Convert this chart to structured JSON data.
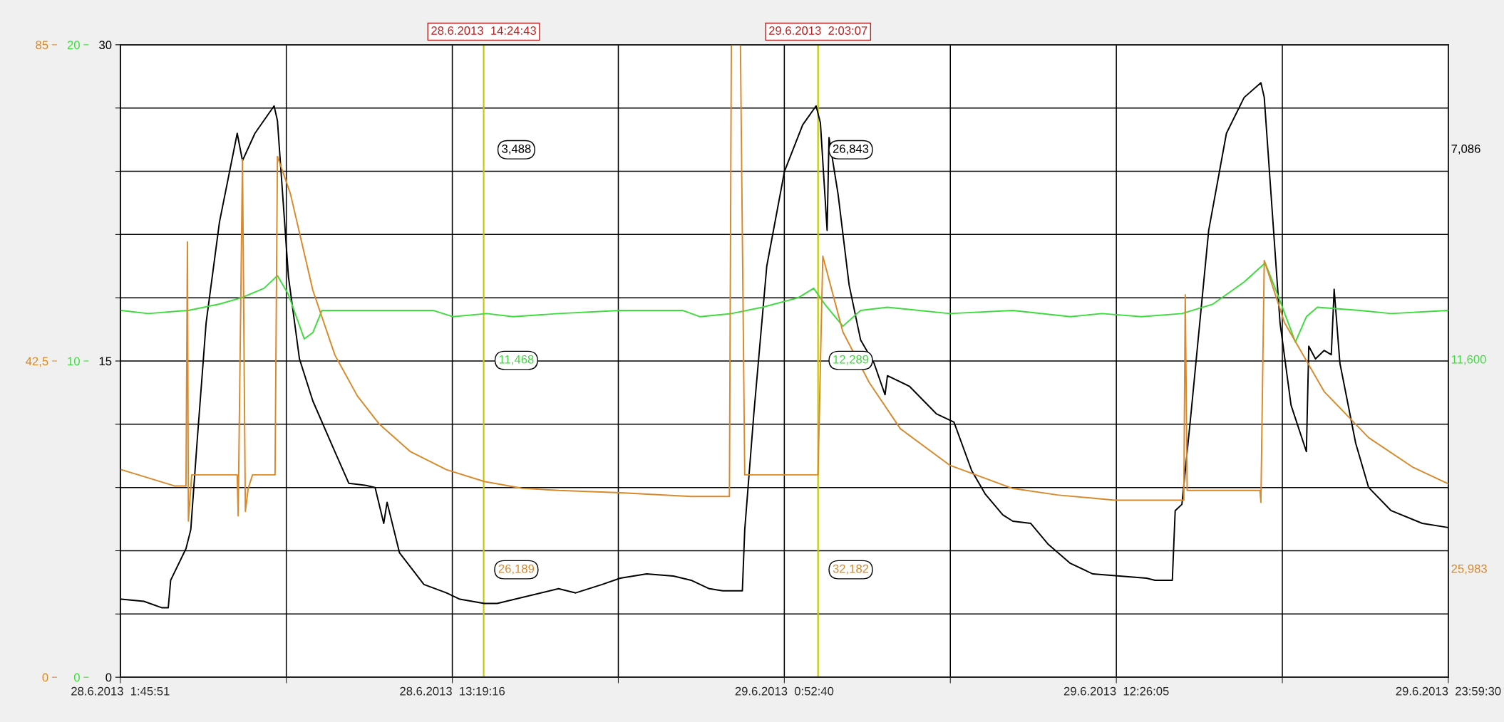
{
  "chart_data": {
    "type": "line",
    "xlim": [
      "2013-06-28T01:45:51",
      "2013-06-29T23:59:30"
    ],
    "xticks": [
      {
        "value": "2013-06-28T01:45:51",
        "label": "28.6.2013  1:45:51"
      },
      {
        "value": "2013-06-28T07:32:33",
        "label": null
      },
      {
        "value": "2013-06-28T13:19:16",
        "label": "28.6.2013  13:19:16"
      },
      {
        "value": "2013-06-28T19:05:58",
        "label": null
      },
      {
        "value": "2013-06-29T00:52:40",
        "label": "29.6.2013  0:52:40"
      },
      {
        "value": "2013-06-29T06:39:22",
        "label": null
      },
      {
        "value": "2013-06-29T12:26:05",
        "label": "29.6.2013  12:26:05"
      },
      {
        "value": "2013-06-29T18:12:47",
        "label": null
      },
      {
        "value": "2013-06-29T23:59:30",
        "label": "29.6.2013  23:59:30"
      }
    ],
    "ylim": [
      0,
      30
    ],
    "yticks": [
      0,
      {
        "value": 3,
        "label": null
      },
      {
        "value": 6,
        "label": null
      },
      {
        "value": 9,
        "label": null
      },
      {
        "value": 12,
        "label": null
      },
      15,
      {
        "value": 18,
        "label": null
      },
      {
        "value": 21,
        "label": null
      },
      {
        "value": 24,
        "label": null
      },
      {
        "value": 27,
        "label": null
      },
      30
    ],
    "y2lim": [
      0,
      20
    ],
    "y2ticks": [
      0,
      10,
      20
    ],
    "y3lim": [
      0,
      85
    ],
    "y3ticks": [
      0,
      {
        "value": 42.5,
        "label": "42,5"
      },
      85
    ],
    "grid": true,
    "series": [
      {
        "color": "#000000",
        "axis": "y",
        "x": [
          "2013-06-28T01:48",
          "2013-06-28T02:35",
          "2013-06-28T03:12",
          "2013-06-28T03:26",
          "2013-06-28T03:31",
          "2013-06-28T04:03",
          "2013-06-28T04:13",
          "2013-06-28T04:26",
          "2013-06-28T04:45",
          "2013-06-28T05:13",
          "2013-06-28T05:50",
          "2013-06-28T06:01",
          "2013-06-28T06:27",
          "2013-06-28T07:07",
          "2013-06-28T07:14",
          "2013-06-28T07:37",
          "2013-06-28T08:00",
          "2013-06-28T08:28",
          "2013-06-28T09:14",
          "2013-06-28T09:43",
          "2013-06-28T10:19",
          "2013-06-28T10:38",
          "2013-06-28T10:56",
          "2013-06-28T11:03",
          "2013-06-28T11:29",
          "2013-06-28T12:20",
          "2013-06-28T13:07",
          "2013-06-28T13:35",
          "2013-06-28T14:26",
          "2013-06-28T14:53",
          "2013-06-28T17:01",
          "2013-06-28T17:37",
          "2013-06-28T18:32",
          "2013-06-28T19:10",
          "2013-06-28T20:05",
          "2013-06-28T21:01",
          "2013-06-28T21:38",
          "2013-06-28T22:16",
          "2013-06-28T22:44",
          "2013-06-28T23:25",
          "2013-06-28T23:30",
          "2013-06-28T23:49",
          "2013-06-29T00:16",
          "2013-06-29T00:53",
          "2013-06-29T01:31",
          "2013-06-29T01:59",
          "2013-06-29T02:08",
          "2013-06-29T02:22",
          "2013-06-29T02:26",
          "2013-06-29T02:45",
          "2013-06-29T03:08",
          "2013-06-29T03:32",
          "2013-06-29T04:00",
          "2013-06-29T04:23",
          "2013-06-29T04:28",
          "2013-06-29T05:14",
          "2013-06-29T06:10",
          "2013-06-29T06:47",
          "2013-06-29T07:24",
          "2013-06-29T07:52",
          "2013-06-29T08:29",
          "2013-06-29T08:50",
          "2013-06-29T09:27",
          "2013-06-29T10:04",
          "2013-06-29T10:50",
          "2013-06-29T11:37",
          "2013-06-29T12:33",
          "2013-06-29T13:29",
          "2013-06-29T13:47",
          "2013-06-29T14:23",
          "2013-06-29T14:29",
          "2013-06-29T14:43",
          "2013-06-29T15:02",
          "2013-06-29T15:39",
          "2013-06-29T16:16",
          "2013-06-29T16:53",
          "2013-06-29T17:28",
          "2013-06-29T17:35",
          "2013-06-29T18:08",
          "2013-06-29T18:31",
          "2013-06-29T19:03",
          "2013-06-29T19:08",
          "2013-06-29T19:22",
          "2013-06-29T19:40",
          "2013-06-29T19:55",
          "2013-06-29T20:01",
          "2013-06-29T20:13",
          "2013-06-29T20:46",
          "2013-06-29T21:13",
          "2013-06-29T22:00",
          "2013-06-29T23:05",
          "2013-06-29T23:59"
        ],
        "values": [
          3.7,
          3.6,
          3.3,
          3.3,
          4.6,
          6.1,
          7.0,
          11.1,
          16.8,
          21.6,
          25.8,
          24.5,
          25.8,
          27.1,
          26.4,
          19.0,
          15.1,
          13.1,
          10.7,
          9.2,
          9.1,
          9.0,
          7.3,
          8.3,
          5.9,
          4.4,
          4.0,
          3.7,
          3.5,
          3.5,
          4.2,
          4.0,
          4.4,
          4.7,
          4.9,
          4.8,
          4.6,
          4.2,
          4.1,
          4.1,
          7.0,
          12.5,
          19.5,
          24.0,
          26.2,
          27.1,
          26.3,
          21.2,
          25.6,
          22.9,
          18.6,
          16.0,
          14.9,
          13.4,
          14.3,
          13.8,
          12.5,
          12.1,
          9.8,
          8.7,
          7.7,
          7.4,
          7.3,
          6.3,
          5.4,
          4.9,
          4.8,
          4.7,
          4.6,
          4.6,
          7.9,
          8.2,
          12.5,
          21.2,
          25.8,
          27.5,
          28.2,
          27.5,
          16.8,
          12.9,
          10.7,
          15.7,
          15.1,
          15.5,
          15.3,
          18.4,
          14.9,
          11.1,
          9.0,
          7.9,
          7.3,
          7.1
        ]
      },
      {
        "color": "#3cdc3c",
        "axis": "y2",
        "x": [
          "2013-06-28T01:48",
          "2013-06-28T02:44",
          "2013-06-28T04:08",
          "2013-06-28T05:13",
          "2013-06-28T05:59",
          "2013-06-28T06:46",
          "2013-06-28T07:14",
          "2013-06-28T07:37",
          "2013-06-28T08:10",
          "2013-06-28T08:28",
          "2013-06-28T08:47",
          "2013-06-28T10:19",
          "2013-06-28T11:43",
          "2013-06-28T12:39",
          "2013-06-28T13:21",
          "2013-06-28T14:31",
          "2013-06-28T15:26",
          "2013-06-28T17:01",
          "2013-06-28T19:10",
          "2013-06-28T21:20",
          "2013-06-28T21:57",
          "2013-06-28T23:02",
          "2013-06-29T00:07",
          "2013-06-29T01:22",
          "2013-06-29T01:54",
          "2013-06-29T02:17",
          "2013-06-29T02:55",
          "2013-06-29T03:32",
          "2013-06-29T04:28",
          "2013-06-29T06:38",
          "2013-06-29T08:50",
          "2013-06-29T10:50",
          "2013-06-29T11:56",
          "2013-06-29T13:19",
          "2013-06-29T14:43",
          "2013-06-29T15:48",
          "2013-06-29T16:53",
          "2013-06-29T17:37",
          "2013-06-29T18:08",
          "2013-06-29T18:40",
          "2013-06-29T19:03",
          "2013-06-29T19:26",
          "2013-06-29T20:55",
          "2013-06-29T22:00",
          "2013-06-29T23:59"
        ],
        "values": [
          11.6,
          11.5,
          11.6,
          11.8,
          12.0,
          12.3,
          12.7,
          12.1,
          10.7,
          10.9,
          11.6,
          11.6,
          11.6,
          11.6,
          11.4,
          11.5,
          11.4,
          11.5,
          11.6,
          11.6,
          11.4,
          11.5,
          11.7,
          12.0,
          12.3,
          11.8,
          11.1,
          11.6,
          11.7,
          11.5,
          11.6,
          11.4,
          11.5,
          11.4,
          11.5,
          11.8,
          12.5,
          13.1,
          11.9,
          10.6,
          11.4,
          11.7,
          11.6,
          11.5,
          11.6
        ]
      },
      {
        "color": "#d9882a",
        "axis": "y3",
        "x": [
          "2013-06-28T01:48",
          "2013-06-28T03:40",
          "2013-06-28T04:03",
          "2013-06-28T04:06",
          "2013-06-28T04:08",
          "2013-06-28T04:15",
          "2013-06-28T05:50",
          "2013-06-28T05:52",
          "2013-06-28T06:01",
          "2013-06-28T06:07",
          "2013-06-28T06:13",
          "2013-06-28T06:22",
          "2013-06-28T07:09",
          "2013-06-28T07:14",
          "2013-06-28T07:41",
          "2013-06-28T08:28",
          "2013-06-28T09:14",
          "2013-06-28T10:01",
          "2013-06-28T10:47",
          "2013-06-28T11:52",
          "2013-06-28T13:07",
          "2013-06-28T14:26",
          "2013-06-28T15:45",
          "2013-06-28T17:01",
          "2013-06-28T19:10",
          "2013-06-28T21:38",
          "2013-06-28T22:58",
          "2013-06-28T23:02",
          "2013-06-28T23:21",
          "2013-06-28T23:30",
          "2013-06-29T01:59",
          "2013-06-29T02:03",
          "2013-06-29T02:13",
          "2013-06-29T02:55",
          "2013-06-29T03:50",
          "2013-06-29T04:55",
          "2013-06-29T06:38",
          "2013-06-29T08:48",
          "2013-06-29T10:23",
          "2013-06-29T12:23",
          "2013-06-29T14:47",
          "2013-06-29T14:50",
          "2013-06-29T14:54",
          "2013-06-29T17:26",
          "2013-06-29T17:28",
          "2013-06-29T17:35",
          "2013-06-29T18:17",
          "2013-06-29T19:40",
          "2013-06-29T21:13",
          "2013-06-29T22:46",
          "2013-06-29T23:59"
        ],
        "values": [
          27.9,
          25.7,
          25.7,
          58.5,
          21.0,
          27.2,
          27.2,
          21.7,
          69.6,
          22.3,
          25.4,
          27.2,
          27.2,
          70.0,
          65.0,
          52.0,
          43.3,
          37.8,
          34.0,
          30.3,
          27.9,
          26.3,
          25.4,
          25.1,
          24.8,
          24.3,
          24.3,
          85,
          85,
          27.2,
          27.2,
          27.2,
          56.6,
          46.4,
          39.6,
          33.4,
          28.5,
          25.4,
          24.5,
          23.8,
          23.8,
          51.4,
          25.1,
          25.1,
          23.5,
          56.0,
          47.7,
          38.4,
          32.2,
          28.2,
          26.0
        ]
      }
    ],
    "ref_lines": [
      {
        "axis": "x",
        "value": "2013-06-28T14:24:43",
        "label": "28.6.2013  14:24:43",
        "color": "#c8c800"
      },
      {
        "axis": "x",
        "value": "2013-06-29T02:03:07",
        "label": "29.6.2013  2:03:07",
        "color": "#c8c800"
      }
    ],
    "annotations": [
      "3,488",
      "11,468",
      "26,189",
      "26,843",
      "12,289",
      "32,182",
      "7,086",
      "11,600",
      "25,983"
    ]
  }
}
